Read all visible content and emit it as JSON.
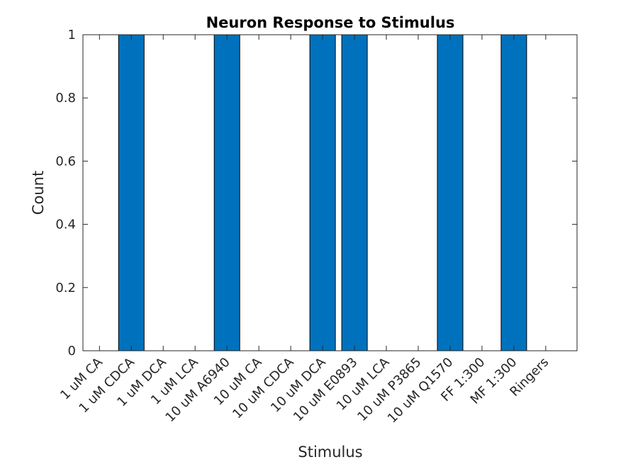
{
  "chart_data": {
    "type": "bar",
    "title": "Neuron Response to Stimulus",
    "xlabel": "Stimulus",
    "ylabel": "Count",
    "ylim": [
      0,
      1
    ],
    "yticks": [
      0,
      0.2,
      0.4,
      0.6,
      0.8,
      1
    ],
    "ytick_labels": [
      "0",
      "0.2",
      "0.4",
      "0.6",
      "0.8",
      "1"
    ],
    "categories": [
      "1 uM CA",
      "1 uM CDCA",
      "1 uM DCA",
      "1 uM LCA",
      "10 uM A6940",
      "10 uM CA",
      "10 uM CDCA",
      "10 uM DCA",
      "10 uM E0893",
      "10 uM LCA",
      "10 uM P3865",
      "10 uM Q1570",
      "FF 1:300",
      "MF 1:300",
      "Ringers"
    ],
    "values": [
      0,
      1,
      0,
      0,
      1,
      0,
      0,
      1,
      1,
      0,
      0,
      1,
      0,
      1,
      0
    ],
    "bar_color": "#0072bd",
    "grid": false,
    "box": true
  }
}
